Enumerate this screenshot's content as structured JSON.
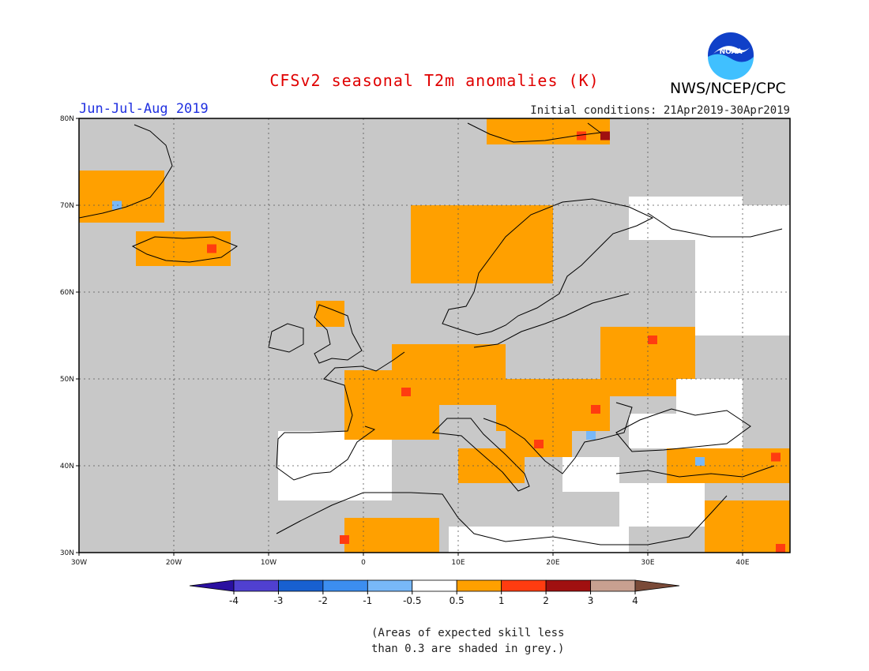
{
  "title": "CFSv2 seasonal T2m anomalies (K)",
  "period_label": "Jun-Jul-Aug 2019",
  "initial_conditions": "Initial conditions: 21Apr2019-30Apr2019",
  "agency": "NWS/NCEP/CPC",
  "logo": {
    "icon": "noaa-logo-icon",
    "text": "NOAA"
  },
  "note_lines": [
    "(Areas of expected skill less",
    "than 0.3 are shaded in grey.)"
  ],
  "map": {
    "extent": {
      "lon": [
        -30,
        45
      ],
      "lat": [
        30,
        80
      ]
    },
    "lon_ticks": [
      {
        "value": -30,
        "label": "30W"
      },
      {
        "value": -20,
        "label": "20W"
      },
      {
        "value": -10,
        "label": "10W"
      },
      {
        "value": 0,
        "label": "0"
      },
      {
        "value": 10,
        "label": "10E"
      },
      {
        "value": 20,
        "label": "20E"
      },
      {
        "value": 30,
        "label": "30E"
      },
      {
        "value": 40,
        "label": "40E"
      }
    ],
    "lat_ticks": [
      {
        "value": 30,
        "label": "30N"
      },
      {
        "value": 40,
        "label": "40N"
      },
      {
        "value": 50,
        "label": "50N"
      },
      {
        "value": 60,
        "label": "60N"
      },
      {
        "value": 70,
        "label": "70N"
      },
      {
        "value": 80,
        "label": "80N"
      }
    ],
    "grid": true,
    "low_skill_color": "#c8c8c8",
    "regions": [
      {
        "name": "iberia-white",
        "category": "white",
        "lon": [
          -9,
          3
        ],
        "lat": [
          36,
          44
        ]
      },
      {
        "name": "france-orange",
        "category": "orange",
        "lon": [
          -2,
          8
        ],
        "lat": [
          43,
          51
        ]
      },
      {
        "name": "uk-north-orange",
        "category": "orange",
        "lon": [
          -5,
          -2
        ],
        "lat": [
          56,
          59
        ]
      },
      {
        "name": "benelux-germany-orange",
        "category": "orange",
        "lon": [
          3,
          15
        ],
        "lat": [
          47,
          54
        ]
      },
      {
        "name": "central-europe-orange",
        "category": "orange",
        "lon": [
          14,
          26
        ],
        "lat": [
          44,
          50
        ]
      },
      {
        "name": "eastern-europe-orange",
        "category": "orange",
        "lon": [
          25,
          35
        ],
        "lat": [
          48,
          56
        ]
      },
      {
        "name": "balkans-orange",
        "category": "orange",
        "lon": [
          15,
          22
        ],
        "lat": [
          41,
          46
        ]
      },
      {
        "name": "italy-orange",
        "category": "orange",
        "lon": [
          10,
          17
        ],
        "lat": [
          38,
          42
        ]
      },
      {
        "name": "turkey-orange",
        "category": "orange",
        "lon": [
          32,
          45
        ],
        "lat": [
          38,
          42
        ]
      },
      {
        "name": "mideast-orange",
        "category": "orange",
        "lon": [
          36,
          45
        ],
        "lat": [
          30,
          36
        ]
      },
      {
        "name": "north-africa-orange",
        "category": "orange",
        "lon": [
          -2,
          8
        ],
        "lat": [
          30,
          34
        ]
      },
      {
        "name": "norway-coast-orange",
        "category": "orange",
        "lon": [
          5,
          20
        ],
        "lat": [
          61,
          70
        ]
      },
      {
        "name": "iceland-orange",
        "category": "orange",
        "lon": [
          -24,
          -14
        ],
        "lat": [
          63,
          67
        ]
      },
      {
        "name": "greenland-orange",
        "category": "orange",
        "lon": [
          -30,
          -21
        ],
        "lat": [
          68,
          74
        ]
      },
      {
        "name": "svalbard-orange",
        "category": "orange",
        "lon": [
          13,
          26
        ],
        "lat": [
          77,
          80
        ]
      },
      {
        "name": "north-russia-white",
        "category": "white",
        "lon": [
          35,
          45
        ],
        "lat": [
          55,
          70
        ]
      },
      {
        "name": "kola-white",
        "category": "white",
        "lon": [
          28,
          40
        ],
        "lat": [
          66,
          71
        ]
      },
      {
        "name": "ukraine-white",
        "category": "white",
        "lon": [
          33,
          40
        ],
        "lat": [
          45,
          50
        ]
      },
      {
        "name": "black-sea-white",
        "category": "white",
        "lon": [
          28,
          40
        ],
        "lat": [
          42,
          46
        ]
      },
      {
        "name": "east-med-white",
        "category": "white",
        "lon": [
          27,
          36
        ],
        "lat": [
          33,
          38
        ]
      },
      {
        "name": "libya-white",
        "category": "white",
        "lon": [
          9,
          28
        ],
        "lat": [
          30,
          33
        ]
      },
      {
        "name": "greece-white",
        "category": "white",
        "lon": [
          21,
          27
        ],
        "lat": [
          37,
          41
        ]
      }
    ],
    "hotspots": [
      {
        "name": "balkan-red",
        "category": "red",
        "lon": 18.5,
        "lat": 42.5
      },
      {
        "name": "romania-red",
        "category": "red",
        "lon": 24.5,
        "lat": 46.5
      },
      {
        "name": "iceland-red",
        "category": "red",
        "lon": -16,
        "lat": 65
      },
      {
        "name": "svalbard-red",
        "category": "red",
        "lon": 23,
        "lat": 78
      },
      {
        "name": "svalbard-darkred",
        "category": "darkred",
        "lon": 25.5,
        "lat": 78
      },
      {
        "name": "belarus-red",
        "category": "red",
        "lon": 30.5,
        "lat": 54.5
      },
      {
        "name": "morocco-red",
        "category": "red",
        "lon": -2,
        "lat": 31.5
      },
      {
        "name": "turkey-east-red",
        "category": "red",
        "lon": 43.5,
        "lat": 41
      },
      {
        "name": "levant-red",
        "category": "red",
        "lon": 44,
        "lat": 30.5
      },
      {
        "name": "france-red",
        "category": "red",
        "lon": 4.5,
        "lat": 48.5
      },
      {
        "name": "bulgaria-blue",
        "category": "lightblue",
        "lon": 24,
        "lat": 43.5
      },
      {
        "name": "turkey-blue",
        "category": "lightblue",
        "lon": 35.5,
        "lat": 40.5
      },
      {
        "name": "greenland-blue",
        "category": "lightblue",
        "lon": -26,
        "lat": 70
      }
    ]
  },
  "colorbar": {
    "segments": [
      {
        "color": "#2a10a0"
      },
      {
        "color": "#5040d0"
      },
      {
        "color": "#1860d0"
      },
      {
        "color": "#3c8ef0"
      },
      {
        "color": "#78b8f8"
      },
      {
        "color": "#ffffff"
      },
      {
        "color": "#ffa000"
      },
      {
        "color": "#ff3c10"
      },
      {
        "color": "#a01010"
      },
      {
        "color": "#c8a090"
      },
      {
        "color": "#7a4a38"
      }
    ],
    "labels": [
      "-4",
      "-3",
      "-2",
      "-1",
      "-0.5",
      "0.5",
      "1",
      "2",
      "3",
      "4"
    ]
  },
  "category_colors": {
    "white": "#ffffff",
    "orange": "#ffa000",
    "red": "#ff3c10",
    "darkred": "#a01010",
    "lightblue": "#78b8f8"
  }
}
